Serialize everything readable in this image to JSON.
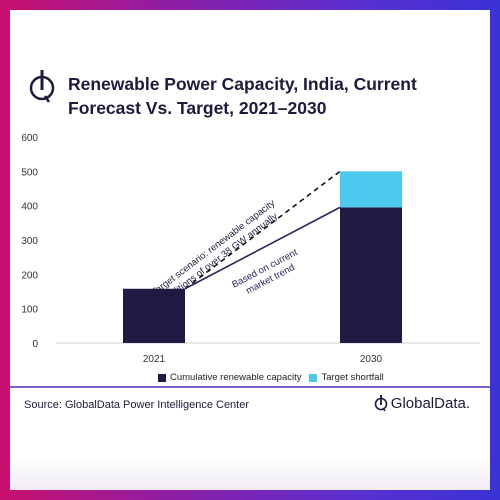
{
  "header": {
    "title": "Renewable Power Capacity, India, Current Forecast Vs. Target, 2021–2030"
  },
  "chart_data": {
    "type": "bar",
    "title": "Renewable Power Capacity, India, Current Forecast Vs. Target, 2021–2030",
    "categories": [
      "2021",
      "2030"
    ],
    "series": [
      {
        "name": "Cumulative renewable capacity",
        "values": [
          158,
          395
        ],
        "color": "#221a45"
      },
      {
        "name": "Target shortfall",
        "values": [
          0,
          105
        ],
        "color": "#4cc9ee"
      }
    ],
    "stacked": true,
    "ylim": [
      0,
      600
    ],
    "yticks": [
      0,
      100,
      200,
      300,
      400,
      500,
      600
    ],
    "xlabel": "",
    "ylabel": "",
    "annotations": [
      {
        "text_lines": [
          "Target scenario: renewable capacity",
          "additions of over 38 GW annually"
        ],
        "line_style": "dashed",
        "from": [
          "2021",
          158
        ],
        "to": [
          "2030",
          500
        ]
      },
      {
        "text_lines": [
          "Based on current",
          "market trend"
        ],
        "line_style": "solid",
        "from": [
          "2021",
          158
        ],
        "to": [
          "2030",
          395
        ]
      }
    ],
    "legend_position": "bottom",
    "grid": false
  },
  "footer": {
    "source": "Source: GlobalData Power Intelligence Center",
    "brand": "GlobalData."
  },
  "icons": {
    "title_logo": "globaldata-logo-icon",
    "brand_logo": "globaldata-logo-icon"
  }
}
